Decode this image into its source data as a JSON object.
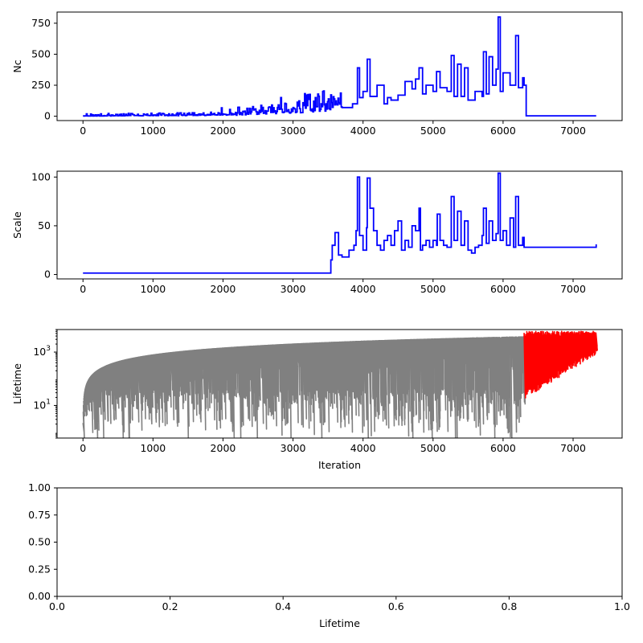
{
  "chart_data": [
    {
      "id": "nc",
      "type": "line",
      "xlabel": "",
      "ylabel": "Nc",
      "xlim": [
        -370,
        7700
      ],
      "ylim": [
        -35,
        840
      ],
      "x_ticks": [
        0,
        1000,
        2000,
        3000,
        4000,
        5000,
        6000,
        7000
      ],
      "y_ticks": [
        0,
        250,
        500,
        750
      ],
      "grid": false,
      "series": [
        {
          "color": "#0000ff",
          "style": "step",
          "x": [
            0,
            300,
            600,
            900,
            1200,
            1500,
            1800,
            2000,
            2200,
            2400,
            2600,
            2800,
            3000,
            3200,
            3400,
            3550,
            3700,
            3850,
            3920,
            3950,
            4000,
            4060,
            4100,
            4200,
            4300,
            4350,
            4400,
            4500,
            4600,
            4700,
            4750,
            4800,
            4850,
            4900,
            5000,
            5050,
            5100,
            5200,
            5260,
            5300,
            5350,
            5400,
            5450,
            5500,
            5600,
            5700,
            5720,
            5760,
            5800,
            5850,
            5900,
            5930,
            5960,
            6000,
            6100,
            6180,
            6220,
            6280,
            6300,
            6330,
            7330
          ],
          "values": [
            3,
            5,
            6,
            8,
            10,
            12,
            14,
            18,
            25,
            35,
            45,
            55,
            70,
            85,
            100,
            110,
            70,
            100,
            390,
            150,
            200,
            460,
            160,
            250,
            100,
            150,
            130,
            170,
            280,
            220,
            300,
            390,
            180,
            250,
            200,
            360,
            230,
            200,
            490,
            160,
            420,
            160,
            390,
            130,
            200,
            160,
            520,
            180,
            480,
            250,
            380,
            800,
            200,
            350,
            250,
            650,
            230,
            310,
            250,
            3,
            3
          ]
        }
      ]
    },
    {
      "id": "scale",
      "type": "line",
      "xlabel": "",
      "ylabel": "Scale",
      "xlim": [
        -370,
        7700
      ],
      "ylim": [
        -4.5,
        106
      ],
      "x_ticks": [
        0,
        1000,
        2000,
        3000,
        4000,
        5000,
        6000,
        7000
      ],
      "y_ticks": [
        0,
        50,
        100
      ],
      "grid": false,
      "series": [
        {
          "color": "#0000ff",
          "style": "step",
          "x": [
            0,
            3000,
            3540,
            3560,
            3600,
            3650,
            3700,
            3800,
            3870,
            3900,
            3920,
            3950,
            4000,
            4050,
            4060,
            4100,
            4150,
            4200,
            4250,
            4300,
            4350,
            4400,
            4450,
            4500,
            4550,
            4600,
            4650,
            4700,
            4750,
            4800,
            4820,
            4850,
            4900,
            4950,
            5000,
            5050,
            5060,
            5100,
            5150,
            5200,
            5260,
            5300,
            5350,
            5400,
            5450,
            5500,
            5550,
            5600,
            5650,
            5700,
            5720,
            5760,
            5800,
            5850,
            5900,
            5930,
            5960,
            6000,
            6050,
            6100,
            6150,
            6180,
            6220,
            6280,
            6300,
            7330
          ],
          "values": [
            1.5,
            1.5,
            15,
            30,
            43,
            20,
            18,
            25,
            30,
            45,
            100,
            40,
            25,
            48,
            99,
            68,
            45,
            30,
            25,
            35,
            40,
            30,
            45,
            55,
            25,
            35,
            28,
            50,
            45,
            68,
            25,
            30,
            35,
            28,
            35,
            30,
            62,
            35,
            30,
            28,
            80,
            35,
            65,
            30,
            55,
            25,
            22,
            28,
            30,
            40,
            68,
            32,
            55,
            35,
            42,
            104,
            35,
            45,
            30,
            58,
            28,
            80,
            30,
            38,
            28,
            31
          ]
        }
      ]
    },
    {
      "id": "lifetime",
      "type": "line",
      "xlabel": "Iteration",
      "ylabel": "Lifetime",
      "xlim": [
        -370,
        7700
      ],
      "ylim": [
        0.6,
        7000
      ],
      "log_y": true,
      "x_ticks": [
        0,
        1000,
        2000,
        3000,
        4000,
        5000,
        6000,
        7000
      ],
      "y_ticks": [
        {
          "value": 1000,
          "base": "10",
          "exp": "3"
        },
        {
          "value": 10,
          "base": "10",
          "exp": "1"
        }
      ],
      "grid": false,
      "series": [
        {
          "color": "#808080",
          "x_range": [
            0,
            6300
          ],
          "upper_envelope": "grows roughly as 2.2*x^0.85 capped near 3000-4500",
          "lower_envelope": "dips randomly between 1 and 100"
        },
        {
          "color": "#ff0000",
          "x_range": [
            6300,
            7330
          ],
          "upper_envelope": "about 3000-6000",
          "lower_envelope": "from about 30 at x=6300 rising to about 1500 at x=7330"
        }
      ]
    },
    {
      "id": "lifetime-hist",
      "type": "bar",
      "xlabel": "Lifetime",
      "ylabel": "",
      "xlim": [
        0,
        1
      ],
      "ylim": [
        0,
        1
      ],
      "x_ticks": [
        "0.0",
        "0.2",
        "0.4",
        "0.6",
        "0.8",
        "1.0"
      ],
      "y_ticks": [
        "0.00",
        "0.25",
        "0.50",
        "0.75",
        "1.00"
      ],
      "values": [],
      "grid": false
    }
  ]
}
